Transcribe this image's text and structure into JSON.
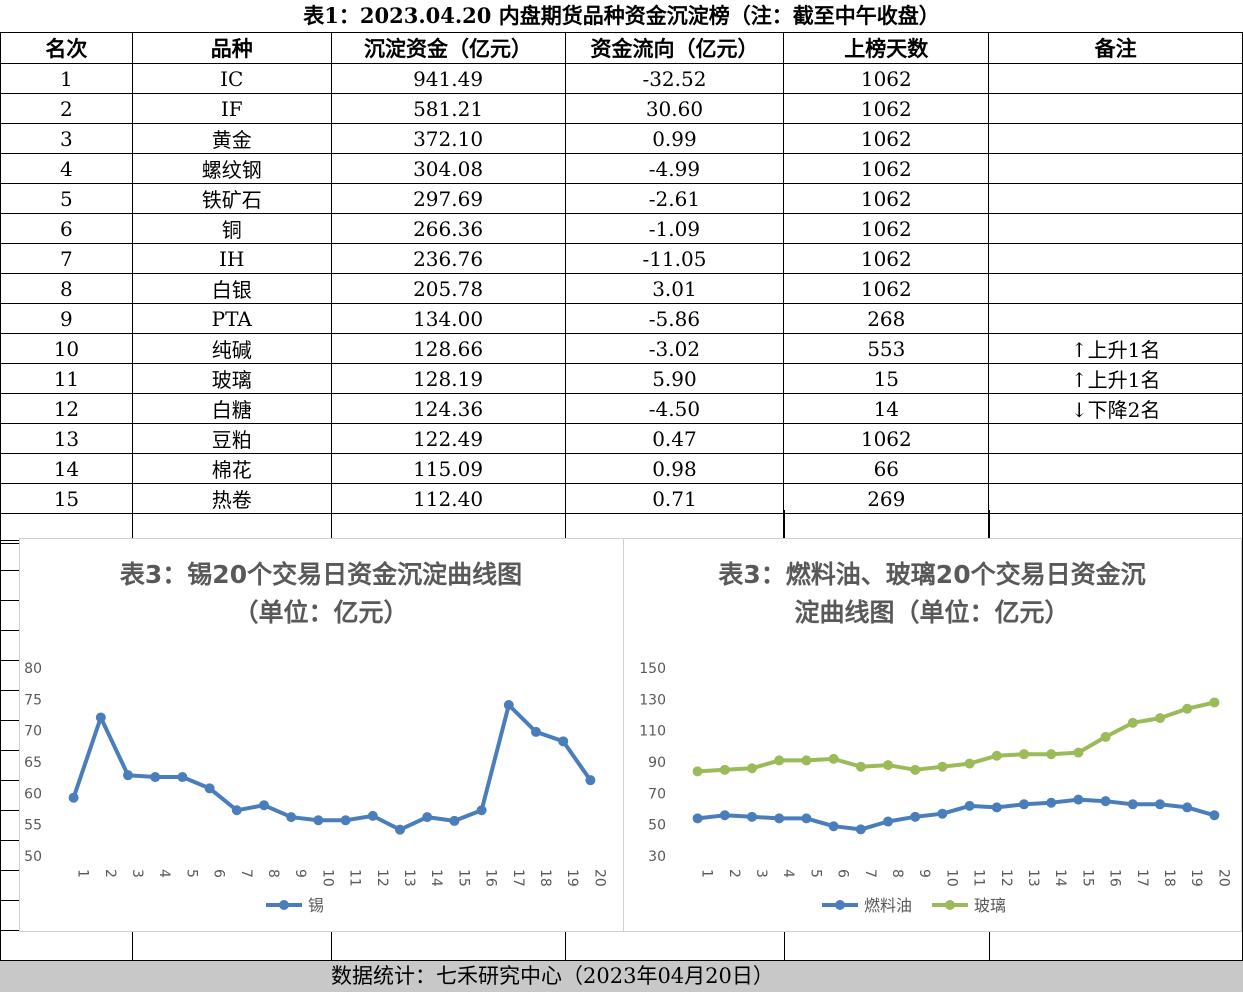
{
  "title": "表1：2023.04.20 内盘期货品种资金沉淀榜（注：截至中午收盘）",
  "table": {
    "headers": [
      "名次",
      "品种",
      "沉淀资金（亿元）",
      "资金流向（亿元）",
      "上榜天数",
      "备注"
    ],
    "rows": [
      [
        "1",
        "IC",
        "941.49",
        "-32.52",
        "1062",
        ""
      ],
      [
        "2",
        "IF",
        "581.21",
        "30.60",
        "1062",
        ""
      ],
      [
        "3",
        "黄金",
        "372.10",
        "0.99",
        "1062",
        ""
      ],
      [
        "4",
        "螺纹钢",
        "304.08",
        "-4.99",
        "1062",
        ""
      ],
      [
        "5",
        "铁矿石",
        "297.69",
        "-2.61",
        "1062",
        ""
      ],
      [
        "6",
        "铜",
        "266.36",
        "-1.09",
        "1062",
        ""
      ],
      [
        "7",
        "IH",
        "236.76",
        "-11.05",
        "1062",
        ""
      ],
      [
        "8",
        "白银",
        "205.78",
        "3.01",
        "1062",
        ""
      ],
      [
        "9",
        "PTA",
        "134.00",
        "-5.86",
        "268",
        ""
      ],
      [
        "10",
        "纯碱",
        "128.66",
        "-3.02",
        "553",
        "↑上升1名"
      ],
      [
        "11",
        "玻璃",
        "128.19",
        "5.90",
        "15",
        "↑上升1名"
      ],
      [
        "12",
        "白糖",
        "124.36",
        "-4.50",
        "14",
        "↓下降2名"
      ],
      [
        "13",
        "豆粕",
        "122.49",
        "0.47",
        "1062",
        ""
      ],
      [
        "14",
        "棉花",
        "115.09",
        "0.98",
        "66",
        ""
      ],
      [
        "15",
        "热卷",
        "112.40",
        "0.71",
        "269",
        ""
      ]
    ]
  },
  "footer": "数据统计：七禾研究中心（2023年04月20日）",
  "chart_data": [
    {
      "type": "line",
      "title_lines": [
        "表3：锡20个交易日资金沉淀曲线图",
        "（单位：亿元）"
      ],
      "x": [
        "1",
        "2",
        "3",
        "4",
        "5",
        "6",
        "7",
        "8",
        "9",
        "10",
        "11",
        "12",
        "13",
        "14",
        "15",
        "16",
        "17",
        "18",
        "19",
        "20"
      ],
      "ylim": [
        50,
        80
      ],
      "yticks": [
        50,
        55,
        60,
        65,
        70,
        75,
        80
      ],
      "grid": false,
      "legend": "bottom",
      "series": [
        {
          "name": "锡",
          "color": "#4a7ebb",
          "values": [
            59.3,
            72.1,
            62.9,
            62.6,
            62.6,
            60.8,
            57.3,
            58.1,
            56.2,
            55.7,
            55.7,
            56.4,
            54.2,
            56.2,
            55.6,
            57.3,
            74.1,
            69.8,
            68.3,
            62.1
          ]
        }
      ]
    },
    {
      "type": "line",
      "title_lines": [
        "表3：燃料油、玻璃20个交易日资金沉",
        "淀曲线图（单位：亿元）"
      ],
      "x": [
        "1",
        "2",
        "3",
        "4",
        "5",
        "6",
        "7",
        "8",
        "9",
        "10",
        "11",
        "12",
        "13",
        "14",
        "15",
        "16",
        "17",
        "18",
        "19",
        "20"
      ],
      "ylim": [
        30,
        150
      ],
      "yticks": [
        30,
        50,
        70,
        90,
        110,
        130,
        150
      ],
      "grid": false,
      "legend": "bottom",
      "series": [
        {
          "name": "燃料油",
          "color": "#4a7ebb",
          "values": [
            54,
            56,
            55,
            54,
            54,
            49,
            47,
            52,
            55,
            57,
            62,
            61,
            63,
            64,
            66,
            65,
            63,
            63,
            61,
            56
          ]
        },
        {
          "name": "玻璃",
          "color": "#9bbb59",
          "values": [
            84,
            85,
            86,
            91,
            91,
            92,
            87,
            88,
            85,
            87,
            89,
            94,
            95,
            95,
            96,
            106,
            115,
            118,
            124,
            128
          ]
        }
      ]
    }
  ]
}
